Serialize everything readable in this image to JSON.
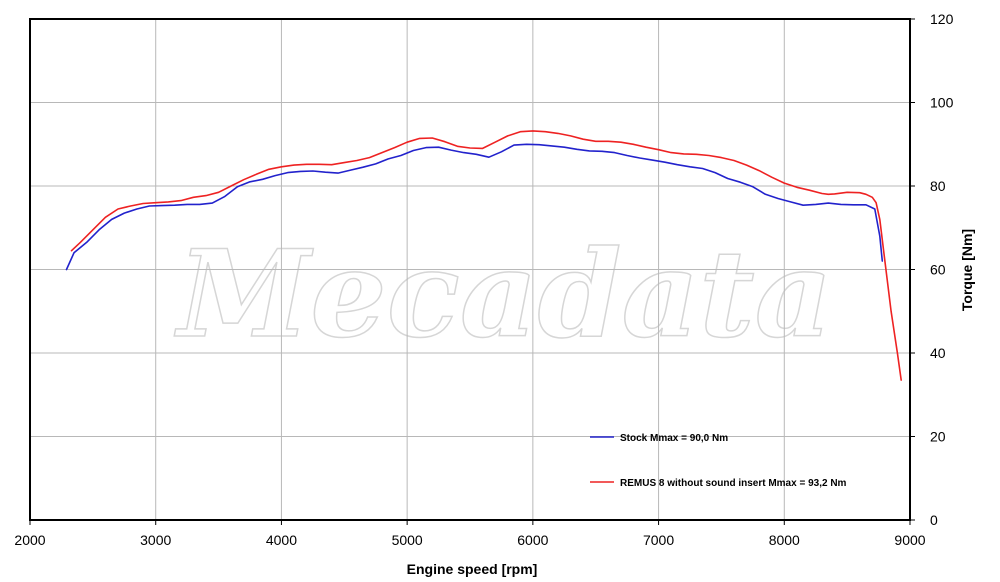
{
  "chart_data": {
    "type": "line",
    "title": "",
    "xlabel": "Engine speed [rpm]",
    "ylabel": "Torque [Nm]",
    "xlim": [
      2000,
      9000
    ],
    "ylim": [
      0,
      120
    ],
    "x_ticks": [
      2000,
      3000,
      4000,
      5000,
      6000,
      7000,
      8000,
      9000
    ],
    "y_ticks": [
      0,
      20,
      40,
      60,
      80,
      100,
      120
    ],
    "y_axis_side": "right",
    "grid": true,
    "legend_position": "bottom-right",
    "watermark": "Mecadata",
    "series": [
      {
        "name": "Stock Mmax = 90,0 Nm",
        "color": "#2222cc",
        "x": [
          2290,
          2350,
          2450,
          2550,
          2650,
          2750,
          2850,
          2950,
          3050,
          3150,
          3250,
          3350,
          3450,
          3550,
          3650,
          3750,
          3850,
          3950,
          4050,
          4150,
          4250,
          4350,
          4450,
          4550,
          4650,
          4750,
          4850,
          4950,
          5050,
          5150,
          5250,
          5350,
          5450,
          5550,
          5650,
          5750,
          5850,
          5950,
          6050,
          6150,
          6250,
          6350,
          6450,
          6550,
          6650,
          6750,
          6850,
          6950,
          7050,
          7150,
          7250,
          7350,
          7450,
          7550,
          7650,
          7750,
          7850,
          7950,
          8050,
          8150,
          8250,
          8350,
          8450,
          8550,
          8650,
          8720,
          8760,
          8780
        ],
        "y": [
          60.0,
          64.0,
          66.5,
          69.5,
          72.0,
          73.5,
          74.5,
          75.2,
          75.3,
          75.4,
          75.6,
          75.6,
          75.9,
          77.5,
          79.8,
          81.0,
          81.6,
          82.5,
          83.2,
          83.5,
          83.6,
          83.3,
          83.1,
          83.8,
          84.5,
          85.3,
          86.5,
          87.3,
          88.5,
          89.2,
          89.3,
          88.6,
          88.0,
          87.6,
          86.9,
          88.2,
          89.8,
          90.0,
          89.9,
          89.6,
          89.3,
          88.8,
          88.4,
          88.3,
          88.0,
          87.3,
          86.7,
          86.2,
          85.7,
          85.1,
          84.6,
          84.2,
          83.2,
          81.8,
          80.9,
          79.8,
          78.0,
          77.0,
          76.2,
          75.4,
          75.6,
          75.9,
          75.6,
          75.5,
          75.5,
          74.5,
          68.0,
          62.0
        ]
      },
      {
        "name": "REMUS 8 without sound insert Mmax = 93,2 Nm",
        "color": "#ee2222",
        "x": [
          2330,
          2400,
          2500,
          2600,
          2700,
          2800,
          2900,
          3000,
          3100,
          3200,
          3300,
          3400,
          3500,
          3600,
          3700,
          3800,
          3900,
          4000,
          4100,
          4200,
          4300,
          4400,
          4500,
          4600,
          4700,
          4800,
          4900,
          5000,
          5100,
          5200,
          5300,
          5400,
          5500,
          5600,
          5700,
          5800,
          5900,
          6000,
          6100,
          6200,
          6300,
          6400,
          6500,
          6600,
          6700,
          6800,
          6900,
          7000,
          7100,
          7200,
          7300,
          7400,
          7500,
          7600,
          7700,
          7800,
          7900,
          8000,
          8100,
          8200,
          8300,
          8350,
          8400,
          8500,
          8600,
          8650,
          8700,
          8730,
          8760,
          8800,
          8850,
          8900,
          8930
        ],
        "y": [
          64.5,
          66.5,
          69.5,
          72.5,
          74.5,
          75.2,
          75.8,
          76.0,
          76.2,
          76.5,
          77.3,
          77.7,
          78.5,
          80.0,
          81.5,
          82.8,
          84.0,
          84.6,
          85.0,
          85.2,
          85.2,
          85.1,
          85.6,
          86.1,
          86.8,
          88.0,
          89.2,
          90.5,
          91.4,
          91.5,
          90.6,
          89.5,
          89.1,
          89.0,
          90.5,
          92.0,
          93.0,
          93.2,
          93.0,
          92.6,
          92.0,
          91.2,
          90.7,
          90.7,
          90.5,
          90.0,
          89.3,
          88.7,
          88.0,
          87.7,
          87.6,
          87.3,
          86.8,
          86.1,
          85.0,
          83.7,
          82.1,
          80.7,
          79.7,
          79.0,
          78.2,
          78.0,
          78.1,
          78.5,
          78.4,
          78.0,
          77.3,
          76.0,
          72.0,
          62.0,
          50.0,
          40.0,
          33.5
        ]
      }
    ]
  }
}
